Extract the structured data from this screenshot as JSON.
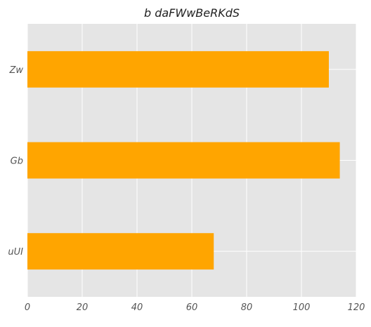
{
  "chart_data": {
    "type": "bar",
    "orientation": "horizontal",
    "title": "b daFWwBeRKdS",
    "xlabel": "",
    "ylabel": "",
    "categories": [
      "uUI",
      "Gb",
      "Zw"
    ],
    "values": [
      68,
      114,
      110
    ],
    "xlim": [
      0,
      120
    ],
    "xticks": [
      0,
      20,
      40,
      60,
      80,
      100,
      120
    ],
    "grid": true,
    "legend": "none",
    "colors": {
      "bar": "#FFA500",
      "plot_background": "#E5E5E5",
      "grid": "#FFFFFF",
      "text": "#555555",
      "title": "#222222"
    }
  }
}
